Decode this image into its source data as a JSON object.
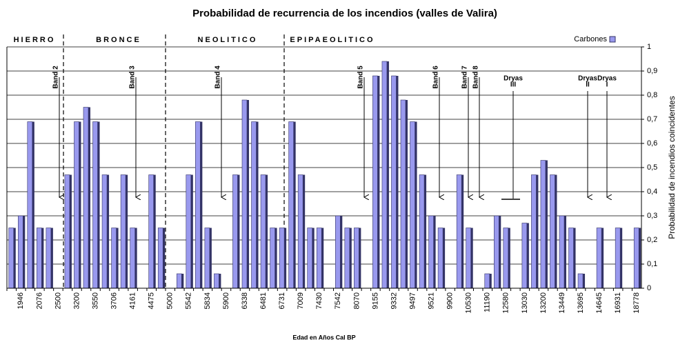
{
  "chart_data": {
    "type": "bar",
    "title": "Probabilidad de recurrencia de los incendios (valles de Valira)",
    "x_label": "Edad en Años Cal BP",
    "y2_label": "Probabilidad de incendios coincidentes",
    "periods": [
      "HIERRO",
      "BRONCE",
      "NEOLITICO",
      "EPIPAEOLITICO"
    ],
    "annotations": [
      [
        "Band 2"
      ],
      [
        "Band 3"
      ],
      [
        "Band 4"
      ],
      [
        "Band 5"
      ],
      [
        "Band 6"
      ],
      [
        "Band 7"
      ],
      [
        "Band 8"
      ],
      [
        "Dryas",
        "III"
      ],
      [
        "Dryas",
        "II"
      ],
      [
        "Dryas",
        "I"
      ]
    ],
    "categories": [
      null,
      "1946",
      null,
      "2076",
      null,
      "2500",
      null,
      "3200",
      null,
      "3550",
      null,
      "3706",
      null,
      "4161",
      null,
      "4475",
      null,
      "5000",
      null,
      "5542",
      null,
      "5834",
      null,
      "5900",
      null,
      "6338",
      null,
      "6481",
      null,
      "6731",
      null,
      "7009",
      null,
      "7430",
      null,
      "7542",
      null,
      "8070",
      null,
      "9155",
      null,
      "9332",
      null,
      "9497",
      null,
      "9521",
      null,
      "9900",
      null,
      "10530",
      null,
      "11190",
      null,
      "12580",
      null,
      "13030",
      null,
      "13200",
      null,
      "13449",
      null,
      "13695",
      null,
      "14645",
      null,
      "16931",
      null,
      "18778"
    ],
    "series": [
      {
        "name": "Carbones",
        "color": "#9999ee",
        "axis": "y2",
        "values": [
          0.25,
          0.3,
          0.69,
          0.25,
          0.25,
          0,
          0.47,
          0.69,
          0.75,
          0.69,
          0.47,
          0.25,
          0.47,
          0.25,
          0,
          0.47,
          0.25,
          0,
          0.06,
          0.47,
          0.69,
          0.25,
          0.06,
          0,
          0.47,
          0.78,
          0.69,
          0.47,
          0.25,
          0.25,
          0.69,
          0.47,
          0.25,
          0.25,
          0,
          0.3,
          0.25,
          0.25,
          0,
          0.88,
          0.94,
          0.88,
          0.78,
          0.69,
          0.47,
          0.3,
          0.25,
          0,
          0.47,
          0.25,
          0,
          0.06,
          0.3,
          0.25,
          0,
          0.27,
          0.47,
          0.53,
          0.47,
          0.3,
          0.25,
          0.06,
          0,
          0.25,
          0,
          0.25,
          0,
          0.25
        ]
      }
    ],
    "y2lim": [
      0,
      1
    ],
    "y2ticks": [
      0,
      {
        "value": 0.1,
        "label": "0,1"
      },
      {
        "value": 0.2,
        "label": "0,2"
      },
      {
        "value": 0.3,
        "label": "0,3"
      },
      {
        "value": 0.4,
        "label": "0,4"
      },
      {
        "value": 0.5,
        "label": "0,5"
      },
      {
        "value": 0.6,
        "label": "0,6"
      },
      {
        "value": 0.7,
        "label": "0,7"
      },
      {
        "value": 0.8,
        "label": "0,8"
      },
      {
        "value": 0.9,
        "label": "0,9"
      },
      1
    ],
    "grid": true,
    "legend": "top-right"
  }
}
